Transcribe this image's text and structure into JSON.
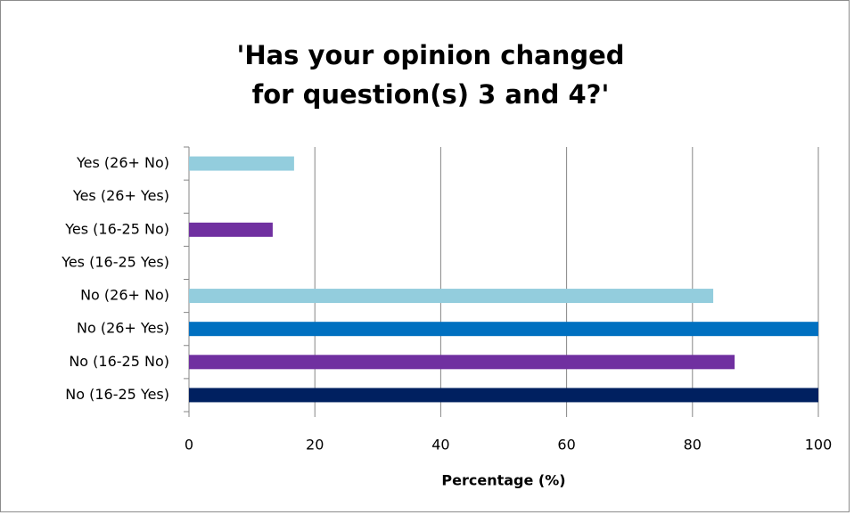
{
  "chart_data": {
    "type": "barh",
    "title": "'Has your opinion changed for question(s) 3 and 4?'",
    "categories": [
      "Yes (26+ No)",
      "Yes (26+ Yes)",
      "Yes (16-25 No)",
      "Yes (16-25 Yes)",
      "No (26+ No)",
      "No (26+ Yes)",
      "No (16-25 No)",
      "No (16-25 Yes)"
    ],
    "values": [
      16.7,
      0,
      13.3,
      0,
      83.3,
      100,
      86.7,
      100
    ],
    "colors": [
      "#93cddd",
      "#93cddd",
      "#7030a0",
      "#7030a0",
      "#93cddd",
      "#0070c0",
      "#7030a0",
      "#002060"
    ],
    "xlabel": "Percentage (%)",
    "xlim": [
      0,
      100
    ],
    "xticks": [
      0,
      20,
      40,
      60,
      80,
      100
    ],
    "grid": true
  }
}
